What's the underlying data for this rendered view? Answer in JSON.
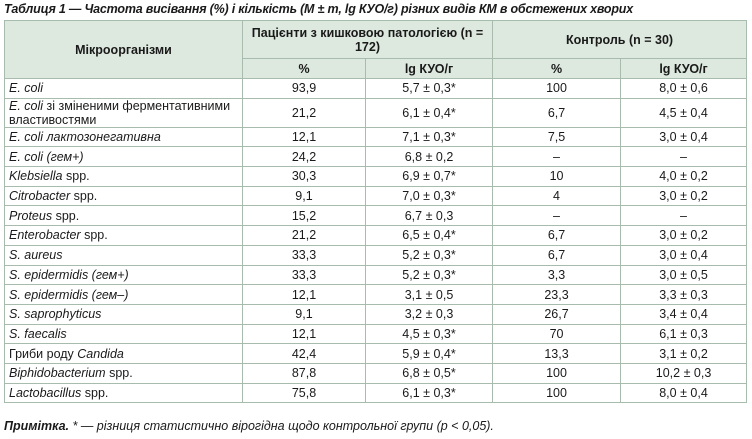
{
  "title": "Таблиця 1 — Частота висівання (%) і кількість (M ± m, lg КУО/г) різних видів КМ в обстежених хворих",
  "table": {
    "header": {
      "organism": "Мікроорганізми",
      "patients": "Пацієнти з кишковою патологією (n = 172)",
      "control": "Контроль (n = 30)",
      "sub": [
        "%",
        "lg КУО/г",
        "%",
        "lg КУО/г"
      ]
    },
    "rows": [
      {
        "name": [
          {
            "text": "E. coli",
            "italic": true
          }
        ],
        "cells": [
          "93,9",
          "5,7 ± 0,3*",
          "100",
          "8,0 ± 0,6"
        ]
      },
      {
        "name": [
          {
            "text": "E. coli",
            "italic": true
          },
          {
            "text": "зі зміненими ферментативними властивостями",
            "italic": false
          }
        ],
        "cells": [
          "21,2",
          "6,1 ± 0,4*",
          "6,7",
          "4,5 ± 0,4"
        ]
      },
      {
        "name": [
          {
            "text": "E. coli лактозонегативна",
            "italic": true
          }
        ],
        "cells": [
          "12,1",
          "7,1 ± 0,3*",
          "7,5",
          "3,0 ± 0,4"
        ]
      },
      {
        "name": [
          {
            "text": "E. coli (гем+)",
            "italic": true
          }
        ],
        "cells": [
          "24,2",
          "6,8 ± 0,2",
          "–",
          "–"
        ]
      },
      {
        "name": [
          {
            "text": "Klebsiella",
            "italic": true
          },
          {
            "text": "spp.",
            "italic": false
          }
        ],
        "cells": [
          "30,3",
          "6,9 ± 0,7*",
          "10",
          "4,0 ± 0,2"
        ]
      },
      {
        "name": [
          {
            "text": "Citrobacter",
            "italic": true
          },
          {
            "text": "spp.",
            "italic": false
          }
        ],
        "cells": [
          "9,1",
          "7,0 ± 0,3*",
          "4",
          "3,0 ± 0,2"
        ]
      },
      {
        "name": [
          {
            "text": "Proteus",
            "italic": true
          },
          {
            "text": "spp.",
            "italic": false
          }
        ],
        "cells": [
          "15,2",
          "6,7 ± 0,3",
          "–",
          "–"
        ]
      },
      {
        "name": [
          {
            "text": "Enterobacter",
            "italic": true
          },
          {
            "text": "spp.",
            "italic": false
          }
        ],
        "cells": [
          "21,2",
          "6,5 ± 0,4*",
          "6,7",
          "3,0 ± 0,2"
        ]
      },
      {
        "name": [
          {
            "text": "S. aureus",
            "italic": true
          }
        ],
        "cells": [
          "33,3",
          "5,2 ± 0,3*",
          "6,7",
          "3,0 ± 0,4"
        ]
      },
      {
        "name": [
          {
            "text": "S. epidermidis (гем+)",
            "italic": true
          }
        ],
        "cells": [
          "33,3",
          "5,2 ± 0,3*",
          "3,3",
          "3,0 ± 0,5"
        ]
      },
      {
        "name": [
          {
            "text": "S. epidermidis (гем–)",
            "italic": true
          }
        ],
        "cells": [
          "12,1",
          "3,1 ± 0,5",
          "23,3",
          "3,3 ± 0,3"
        ]
      },
      {
        "name": [
          {
            "text": "S. saprophyticus",
            "italic": true
          }
        ],
        "cells": [
          "9,1",
          "3,2 ± 0,3",
          "26,7",
          "3,4 ± 0,4"
        ]
      },
      {
        "name": [
          {
            "text": "S. faecalis",
            "italic": true
          }
        ],
        "cells": [
          "12,1",
          "4,5 ± 0,3*",
          "70",
          "6,1 ± 0,3"
        ]
      },
      {
        "name": [
          {
            "text": "Гриби роду",
            "italic": false
          },
          {
            "text": "Candida",
            "italic": true
          }
        ],
        "cells": [
          "42,4",
          "5,9 ± 0,4*",
          "13,3",
          "3,1 ± 0,2"
        ]
      },
      {
        "name": [
          {
            "text": "Biphidobacterium",
            "italic": true
          },
          {
            "text": "spp.",
            "italic": false
          }
        ],
        "cells": [
          "87,8",
          "6,8 ± 0,5*",
          "100",
          "10,2 ± 0,3"
        ]
      },
      {
        "name": [
          {
            "text": "Lactobacillus",
            "italic": true
          },
          {
            "text": "spp.",
            "italic": false
          }
        ],
        "cells": [
          "75,8",
          "6,1 ± 0,3*",
          "100",
          "8,0 ± 0,4"
        ]
      }
    ]
  },
  "note": {
    "label": "Примітка.",
    "text": "* — різниця статистично вірогідна щодо контрольної групи (p < 0,05)."
  }
}
